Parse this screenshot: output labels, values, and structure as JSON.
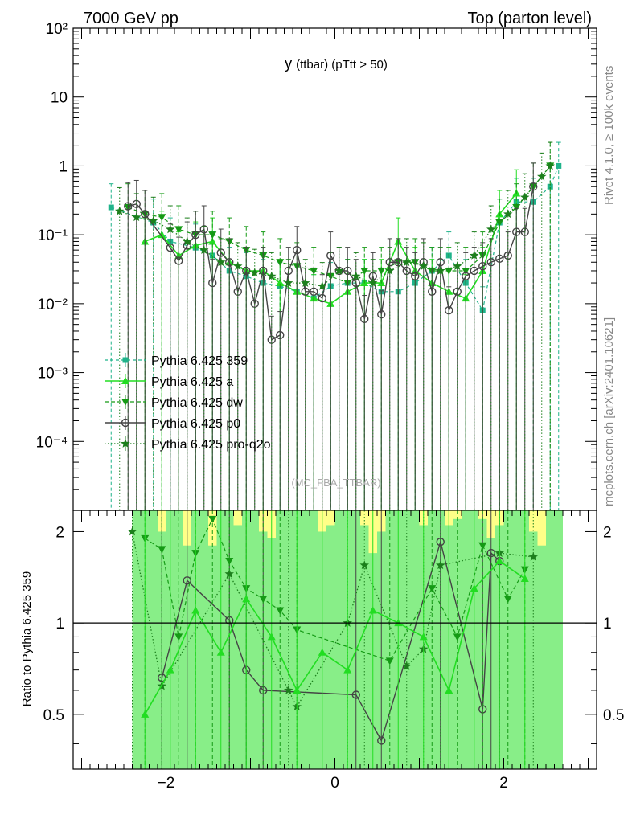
{
  "header": {
    "left": "7000 GeV pp",
    "right": "Top (parton level)"
  },
  "side_texts": {
    "rivet": "Rivet 4.1.0, ≥ 100k events",
    "mcplots": "mcplots.cern.ch [arXiv:2401.10621]"
  },
  "watermark": "(MC_FBA_TTBAR)",
  "colors": {
    "p359": "#1fb38a",
    "a": "#22dd22",
    "dw": "#159a15",
    "p0": "#444444",
    "pro_q2o": "#1c7f1c",
    "band_yellow": "#ffff88",
    "band_green": "#88ee88"
  },
  "chart_data": [
    {
      "type": "line",
      "title_main": "y",
      "title_sub": "(ttbar) (pTtt > 50)",
      "xlim": [
        -3.1,
        3.1
      ],
      "ylim": [
        1e-05,
        100
      ],
      "yscale": "log",
      "y_tick_labels": [
        "10⁻⁴",
        "10⁻³",
        "10⁻²",
        "10⁻¹",
        "1",
        "10",
        "10²"
      ],
      "legend_position": "left-middle",
      "series": [
        {
          "name": "Pythia 6.425 359",
          "x": [
            -2.65,
            -2.15,
            -1.95,
            -1.65,
            -1.45,
            -1.25,
            -1.05,
            -0.85,
            -0.65,
            -0.45,
            -0.25,
            -0.05,
            0.15,
            0.35,
            0.55,
            0.75,
            0.95,
            1.15,
            1.35,
            1.55,
            1.75,
            1.95,
            2.15,
            2.35,
            2.55,
            2.65
          ],
          "y": [
            0.25,
            0.15,
            0.08,
            0.065,
            0.05,
            0.03,
            0.025,
            0.02,
            0.018,
            0.015,
            0.012,
            0.018,
            0.02,
            0.02,
            0.015,
            0.015,
            0.02,
            0.03,
            0.05,
            0.02,
            0.008,
            0.15,
            0.3,
            0.3,
            0.5,
            1.0
          ]
        },
        {
          "name": "Pythia 6.425 a",
          "x": [
            -2.25,
            -2.05,
            -1.85,
            -1.65,
            -1.45,
            -1.25,
            -1.05,
            -0.85,
            -0.65,
            -0.45,
            -0.25,
            -0.05,
            0.15,
            0.35,
            0.55,
            0.75,
            0.95,
            1.15,
            1.35,
            1.55,
            1.75,
            1.95,
            2.15
          ],
          "y": [
            0.08,
            0.1,
            0.05,
            0.07,
            0.08,
            0.04,
            0.03,
            0.03,
            0.02,
            0.015,
            0.012,
            0.01,
            0.015,
            0.02,
            0.02,
            0.08,
            0.03,
            0.02,
            0.015,
            0.012,
            0.03,
            0.2,
            0.4
          ]
        },
        {
          "name": "Pythia 6.425 dw",
          "x": [
            -2.45,
            -2.25,
            -2.05,
            -1.85,
            -1.65,
            -1.45,
            -1.25,
            -1.05,
            -0.85,
            -0.65,
            -0.45,
            -0.25,
            -0.05,
            0.15,
            0.35,
            0.55,
            0.75,
            0.95,
            1.15,
            1.35,
            1.55,
            1.75,
            1.95,
            2.15,
            2.35,
            2.55
          ],
          "y": [
            0.25,
            0.2,
            0.18,
            0.12,
            0.1,
            0.1,
            0.08,
            0.06,
            0.05,
            0.04,
            0.035,
            0.03,
            0.025,
            0.02,
            0.03,
            0.03,
            0.04,
            0.04,
            0.03,
            0.03,
            0.03,
            0.05,
            0.15,
            0.25,
            0.5,
            1.0
          ]
        },
        {
          "name": "Pythia 6.425 p0",
          "x": [
            -2.45,
            -2.35,
            -2.25,
            -1.95,
            -1.85,
            -1.75,
            -1.65,
            -1.55,
            -1.45,
            -1.35,
            -1.25,
            -1.15,
            -1.05,
            -0.95,
            -0.85,
            -0.75,
            -0.65,
            -0.55,
            -0.45,
            -0.35,
            -0.25,
            -0.15,
            -0.05,
            0.05,
            0.15,
            0.25,
            0.35,
            0.45,
            0.55,
            0.65,
            0.75,
            0.85,
            0.95,
            1.05,
            1.15,
            1.25,
            1.35,
            1.45,
            1.55,
            1.65,
            1.75,
            1.85,
            1.95,
            2.05,
            2.15,
            2.25,
            2.35
          ],
          "y": [
            0.26,
            0.28,
            0.2,
            0.065,
            0.042,
            0.07,
            0.1,
            0.12,
            0.02,
            0.055,
            0.04,
            0.015,
            0.03,
            0.01,
            0.03,
            0.003,
            0.0035,
            0.03,
            0.06,
            0.015,
            0.015,
            0.012,
            0.05,
            0.03,
            0.03,
            0.02,
            0.006,
            0.025,
            0.007,
            0.04,
            0.04,
            0.03,
            0.025,
            0.04,
            0.015,
            0.04,
            0.008,
            0.015,
            0.025,
            0.03,
            0.035,
            0.04,
            0.045,
            0.05,
            0.11,
            0.11,
            0.5
          ]
        },
        {
          "name": "Pythia 6.425 pro-q2o",
          "x": [
            -2.55,
            -2.35,
            -2.15,
            -1.95,
            -1.75,
            -1.55,
            -1.35,
            -1.15,
            -0.95,
            -0.75,
            -0.55,
            -0.35,
            -0.15,
            0.05,
            0.25,
            0.45,
            0.65,
            0.85,
            1.05,
            1.25,
            1.45,
            1.65,
            1.85,
            2.05,
            2.25,
            2.45,
            2.55
          ],
          "y": [
            0.22,
            0.18,
            0.16,
            0.12,
            0.08,
            0.06,
            0.04,
            0.035,
            0.028,
            0.025,
            0.02,
            0.02,
            0.018,
            0.03,
            0.025,
            0.02,
            0.03,
            0.04,
            0.035,
            0.03,
            0.035,
            0.05,
            0.12,
            0.2,
            0.35,
            0.7,
            1.0
          ]
        }
      ]
    },
    {
      "type": "line",
      "ylabel": "Ratio to Pythia 6.425 359",
      "xlim": [
        -3.1,
        3.1
      ],
      "ylim": [
        0.33,
        2.35
      ],
      "yscale": "log",
      "x_tick_labels": [
        "−2",
        "0",
        "2"
      ],
      "y_tick_labels": [
        "0.5",
        "1",
        "2"
      ],
      "reference_line": 1,
      "bands": {
        "x_edges": [
          -2.4,
          -2.3,
          -2.2,
          -2.1,
          -2.0,
          -1.9,
          -1.8,
          -1.7,
          -1.6,
          -1.5,
          -1.4,
          -1.3,
          -1.2,
          -1.1,
          -1.0,
          -0.9,
          -0.8,
          -0.7,
          -0.6,
          -0.5,
          -0.4,
          -0.3,
          -0.2,
          -0.1,
          0.0,
          0.1,
          0.2,
          0.3,
          0.4,
          0.5,
          0.6,
          0.7,
          0.8,
          0.9,
          1.0,
          1.1,
          1.2,
          1.3,
          1.4,
          1.5,
          1.6,
          1.7,
          1.8,
          1.9,
          2.0,
          2.1,
          2.2,
          2.3,
          2.4,
          2.5,
          2.6,
          2.7
        ],
        "green_low": [
          0.33,
          0.33,
          0.33,
          0.33,
          0.33,
          0.33,
          0.33,
          0.33,
          0.33,
          0.33,
          0.33,
          0.33,
          0.33,
          0.33,
          0.33,
          0.33,
          0.33,
          0.33,
          0.33,
          0.33,
          0.33,
          0.33,
          0.33,
          0.33,
          0.33,
          0.33,
          0.33,
          0.33,
          0.33,
          0.33,
          0.33,
          0.33,
          0.33,
          0.33,
          0.33,
          0.33,
          0.33,
          0.33,
          0.33,
          0.33,
          0.33,
          0.33,
          0.33,
          0.33,
          0.33,
          0.33,
          0.33,
          0.33,
          0.33,
          0.33,
          0.33
        ],
        "green_high": [
          2.35,
          2.35,
          2.35,
          2.0,
          2.35,
          2.35,
          1.8,
          2.35,
          2.35,
          1.8,
          2.35,
          2.35,
          2.1,
          2.35,
          2.35,
          2.0,
          1.9,
          2.35,
          2.35,
          2.35,
          2.35,
          2.35,
          2.0,
          2.1,
          2.35,
          2.35,
          2.35,
          2.1,
          1.7,
          2.0,
          2.35,
          2.35,
          2.35,
          2.35,
          2.1,
          2.35,
          2.35,
          2.1,
          2.2,
          2.35,
          2.35,
          2.2,
          1.9,
          2.1,
          2.35,
          2.35,
          2.35,
          2.0,
          1.8,
          2.35,
          2.35
        ],
        "yellow_high": [
          2.35,
          2.35,
          2.35,
          2.35,
          2.35,
          2.35,
          2.35,
          2.35,
          2.35,
          2.35,
          2.35,
          2.35,
          2.35,
          2.35,
          2.35,
          2.35,
          2.35,
          2.35,
          2.35,
          2.35,
          2.35,
          2.35,
          2.35,
          2.35,
          2.35,
          2.35,
          2.35,
          2.35,
          2.35,
          2.35,
          2.35,
          2.35,
          2.35,
          2.35,
          2.35,
          2.35,
          2.35,
          2.35,
          2.35,
          2.35,
          2.35,
          2.35,
          2.35,
          2.35,
          2.35,
          2.35,
          2.35,
          2.35,
          2.35,
          2.35,
          2.35
        ]
      },
      "series": [
        {
          "name": "Pythia 6.425 p0",
          "x": [
            -2.05,
            -1.75,
            -1.25,
            -1.05,
            -0.85,
            0.25,
            0.55,
            1.25,
            1.75,
            1.85,
            1.95
          ],
          "y": [
            0.66,
            1.38,
            1.02,
            0.7,
            0.6,
            0.58,
            0.41,
            1.85,
            0.52,
            1.7,
            1.6
          ]
        },
        {
          "name": "Pythia 6.425 pro-q2o",
          "x": [
            -2.4,
            -2.05,
            -1.25,
            -0.55,
            -0.45,
            0.15,
            0.35,
            0.85,
            1.05,
            1.25,
            1.95,
            2.35
          ],
          "y": [
            2.0,
            0.62,
            1.45,
            0.6,
            0.53,
            1.0,
            1.55,
            0.72,
            0.82,
            1.55,
            1.7,
            1.65
          ]
        },
        {
          "name": "Pythia 6.425 dw",
          "x": [
            -2.25,
            -2.05,
            -1.85,
            -1.65,
            -1.45,
            -1.25,
            -1.05,
            -0.85,
            -0.65,
            -0.45,
            0.65,
            1.15,
            1.45,
            1.75,
            2.05,
            2.25
          ],
          "y": [
            1.9,
            1.75,
            0.9,
            1.7,
            2.2,
            1.6,
            1.3,
            1.2,
            1.1,
            0.95,
            0.75,
            1.3,
            0.9,
            1.8,
            1.2,
            1.5
          ]
        },
        {
          "name": "Pythia 6.425 a",
          "x": [
            -2.25,
            -1.95,
            -1.65,
            -1.35,
            -1.05,
            -0.75,
            -0.45,
            -0.15,
            0.15,
            0.45,
            0.75,
            1.05,
            1.35,
            1.65,
            1.95,
            2.25
          ],
          "y": [
            0.5,
            0.7,
            1.1,
            0.8,
            1.2,
            0.9,
            0.6,
            0.8,
            0.7,
            1.1,
            1.0,
            0.9,
            0.6,
            1.3,
            1.6,
            1.4
          ]
        }
      ]
    }
  ]
}
